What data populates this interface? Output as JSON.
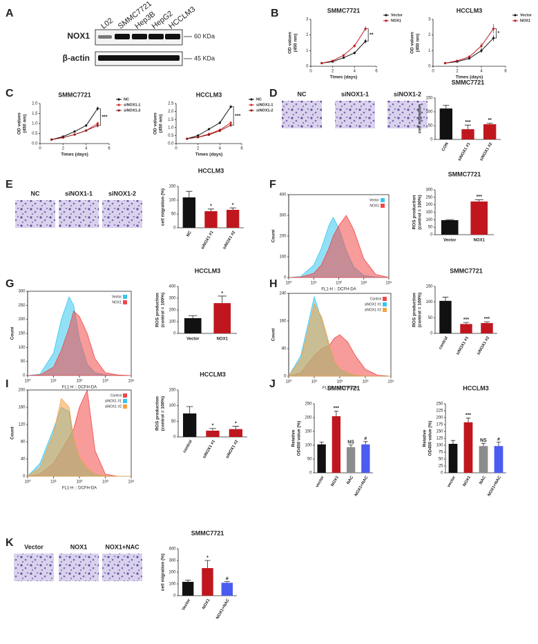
{
  "panel_labels": [
    "A",
    "B",
    "C",
    "D",
    "E",
    "F",
    "G",
    "H",
    "I",
    "J",
    "K"
  ],
  "blot": {
    "lanes": [
      "L02",
      "SMMC7721",
      "Hep3B",
      "HepG2",
      "HCCLM3"
    ],
    "rows": [
      {
        "name": "NOX1",
        "size": "60 KDa"
      },
      {
        "name": "β-actin",
        "size": "45 KDa"
      }
    ]
  },
  "micrographs": [
    {
      "captions": [
        "NC",
        "siNOX1-1",
        "siNOX1-2"
      ]
    },
    {
      "captions": [
        "NC",
        "siNOX1-1",
        "siNOX1-2"
      ]
    },
    {
      "captions": [
        "Vector",
        "NOX1",
        "NOX1+NAC"
      ]
    }
  ],
  "chart_data": [
    {
      "type": "line",
      "title": "SMMC7721",
      "xlabel": "Times (days)",
      "ylabel": [
        "OD values",
        "(450 nm)"
      ],
      "x": [
        1,
        2,
        3,
        4,
        5
      ],
      "xlim": [
        0,
        6
      ],
      "xticks": [
        0,
        2,
        4,
        6
      ],
      "ylim": [
        0,
        3
      ],
      "yticks": [
        0,
        1,
        2,
        3
      ],
      "series": [
        {
          "name": "Vector",
          "color": "#111111",
          "values": [
            0.2,
            0.3,
            0.55,
            0.85,
            1.6
          ],
          "errors": [
            0.02,
            0.03,
            0.05,
            0.08,
            0.15
          ]
        },
        {
          "name": "NOX1",
          "color": "#c0171e",
          "values": [
            0.2,
            0.35,
            0.7,
            1.3,
            2.4
          ],
          "errors": [
            0.02,
            0.04,
            0.06,
            0.1,
            0.15
          ]
        }
      ],
      "annotation": "**",
      "legend": "right"
    },
    {
      "type": "line",
      "title": "HCCLM3",
      "xlabel": "Times (days)",
      "ylabel": [
        "OD values",
        "(450 nm)"
      ],
      "x": [
        1,
        2,
        3,
        4,
        5
      ],
      "xlim": [
        0,
        6
      ],
      "xticks": [
        0,
        2,
        4,
        6
      ],
      "ylim": [
        0,
        3
      ],
      "yticks": [
        0,
        1,
        2,
        3
      ],
      "series": [
        {
          "name": "Vector",
          "color": "#111111",
          "values": [
            0.2,
            0.3,
            0.5,
            1.0,
            1.8
          ],
          "errors": [
            0.02,
            0.03,
            0.05,
            0.15,
            0.2
          ]
        },
        {
          "name": "NOX1",
          "color": "#c0171e",
          "values": [
            0.2,
            0.35,
            0.6,
            1.3,
            2.4
          ],
          "errors": [
            0.02,
            0.04,
            0.1,
            0.2,
            0.3
          ]
        }
      ],
      "annotation": "*",
      "legend": "right"
    },
    {
      "type": "line",
      "title": "SMMC7721",
      "xlabel": "Times (days)",
      "ylabel": [
        "OD values",
        "(450 nm)"
      ],
      "x": [
        1,
        2,
        3,
        4,
        5
      ],
      "xlim": [
        0,
        6
      ],
      "xticks": [
        0,
        2,
        4,
        6
      ],
      "ylim": [
        0,
        2
      ],
      "yticks": [
        {
          "value": 0,
          "label": "0.0"
        },
        {
          "value": 0.5,
          "label": "0.5"
        },
        {
          "value": 1,
          "label": "1.0"
        },
        {
          "value": 1.5,
          "label": "1.5"
        },
        {
          "value": 2,
          "label": "2.0"
        }
      ],
      "series": [
        {
          "name": "NC",
          "color": "#111111",
          "values": [
            0.2,
            0.35,
            0.6,
            0.9,
            1.75
          ],
          "errors": [
            0.02,
            0.03,
            0.04,
            0.05,
            0.1
          ]
        },
        {
          "name": "siNOX1-1",
          "color": "#d62728",
          "values": [
            0.2,
            0.3,
            0.45,
            0.65,
            1.0
          ],
          "errors": [
            0.02,
            0.03,
            0.04,
            0.05,
            0.1
          ]
        },
        {
          "name": "siNOX1-2",
          "color": "#8b1a1a",
          "values": [
            0.2,
            0.3,
            0.45,
            0.65,
            0.9
          ],
          "errors": [
            0.02,
            0.03,
            0.04,
            0.05,
            0.1
          ]
        }
      ],
      "annotation": "***",
      "legend": "right"
    },
    {
      "type": "line",
      "title": "HCCLM3",
      "xlabel": "Times (days)",
      "ylabel": [
        "OD values",
        "(450 nm)"
      ],
      "x": [
        1,
        2,
        3,
        4,
        5
      ],
      "xlim": [
        0,
        6
      ],
      "xticks": [
        0,
        2,
        4,
        6
      ],
      "ylim": [
        0,
        2.5
      ],
      "yticks": [
        {
          "value": 0,
          "label": "0.0"
        },
        {
          "value": 0.5,
          "label": "0.5"
        },
        {
          "value": 1,
          "label": "1.0"
        },
        {
          "value": 1.5,
          "label": "1.5"
        },
        {
          "value": 2,
          "label": "2.0"
        },
        {
          "value": 2.5,
          "label": "2.5"
        }
      ],
      "series": [
        {
          "name": "NC",
          "color": "#111111",
          "values": [
            0.3,
            0.5,
            0.9,
            1.3,
            2.3
          ],
          "errors": [
            0.02,
            0.03,
            0.05,
            0.08,
            0.1
          ]
        },
        {
          "name": "siNOX1-1",
          "color": "#d62728",
          "values": [
            0.3,
            0.4,
            0.6,
            0.85,
            1.3
          ],
          "errors": [
            0.02,
            0.03,
            0.04,
            0.06,
            0.1
          ]
        },
        {
          "name": "siNOX1-2",
          "color": "#8b1a1a",
          "values": [
            0.3,
            0.4,
            0.55,
            0.8,
            1.15
          ],
          "errors": [
            0.02,
            0.03,
            0.04,
            0.06,
            0.1
          ]
        }
      ],
      "annotation": "***",
      "legend": "right"
    },
    {
      "type": "bar",
      "title": "SMMC7721",
      "ylabel": [
        "cell migration"
      ],
      "categories": [
        "CON",
        "siNOX1 #1",
        "siNOX1 #2"
      ],
      "values": [
        112,
        37,
        55
      ],
      "errors": [
        12,
        15,
        4
      ],
      "colors": [
        "#111111",
        "#c0171e",
        "#c0171e"
      ],
      "annotations": [
        null,
        "***",
        "**"
      ],
      "ylim": [
        0,
        150
      ],
      "yticks": [
        0,
        50,
        100,
        150
      ],
      "xtick_rotation": 60
    },
    {
      "type": "bar",
      "title": "HCCLM3",
      "ylabel": [
        "cell migration (%)"
      ],
      "categories": [
        "NC",
        "siNOX1 #1",
        "siNOX1 #2"
      ],
      "values": [
        110,
        60,
        65
      ],
      "errors": [
        22,
        8,
        7
      ],
      "colors": [
        "#111111",
        "#c0171e",
        "#c0171e"
      ],
      "annotations": [
        null,
        "*",
        "*"
      ],
      "ylim": [
        0,
        150
      ],
      "yticks": [
        0,
        50,
        100,
        150
      ],
      "xtick_rotation": 60
    },
    {
      "type": "flow",
      "xlabel": "FL1-H :: DCFH-DA",
      "ylabel": [
        "Count"
      ],
      "xscale": "log",
      "x": [
        1,
        3,
        10,
        20,
        40,
        60,
        100,
        200,
        400,
        1000,
        3000,
        10000
      ],
      "xlim": [
        1,
        10000
      ],
      "xticks": [
        {
          "value": 1,
          "label": "10⁰"
        },
        {
          "value": 10,
          "label": "10¹"
        },
        {
          "value": 100,
          "label": "10²"
        },
        {
          "value": 1000,
          "label": "10³"
        },
        {
          "value": 10000,
          "label": "10⁴"
        }
      ],
      "ylim": [
        0,
        400
      ],
      "yticks": [
        0,
        100,
        200,
        300,
        400
      ],
      "series": [
        {
          "name": "Vector",
          "color": "#38c6ef",
          "values": [
            0,
            5,
            60,
            140,
            250,
            290,
            240,
            130,
            50,
            10,
            2,
            0
          ]
        },
        {
          "name": "NOX1",
          "color": "#f04848",
          "values": [
            0,
            2,
            20,
            60,
            140,
            200,
            250,
            300,
            230,
            90,
            15,
            0
          ]
        }
      ]
    },
    {
      "type": "bar",
      "title": "SMMC7721",
      "ylabel": [
        "ROS production",
        "(control = 100%)"
      ],
      "categories": [
        "Vector",
        "NOX1"
      ],
      "values": [
        97,
        222
      ],
      "errors": [
        4,
        12
      ],
      "colors": [
        "#111111",
        "#c0171e"
      ],
      "annotations": [
        null,
        "***"
      ],
      "ylim": [
        0,
        300
      ],
      "yticks": [
        0,
        50,
        100,
        150,
        200,
        250,
        300
      ],
      "xtick_rotation": 0
    },
    {
      "type": "flow",
      "xlabel": "FL1-H :: DCFH-DA",
      "ylabel": [
        "Count"
      ],
      "xscale": "log",
      "x": [
        1,
        3,
        10,
        20,
        40,
        60,
        100,
        200,
        400,
        1000,
        3000,
        10000
      ],
      "xlim": [
        1,
        10000
      ],
      "xticks": [
        {
          "value": 1,
          "label": "10⁰"
        },
        {
          "value": 10,
          "label": "10¹"
        },
        {
          "value": 100,
          "label": "10²"
        },
        {
          "value": 1000,
          "label": "10³"
        },
        {
          "value": 10000,
          "label": "10⁴"
        }
      ],
      "ylim": [
        0,
        300
      ],
      "yticks": [
        0,
        50,
        100,
        150,
        200,
        250,
        300
      ],
      "series": [
        {
          "name": "Vector",
          "color": "#38c6ef",
          "values": [
            0,
            5,
            80,
            200,
            280,
            250,
            130,
            40,
            10,
            2,
            0,
            0
          ]
        },
        {
          "name": "NOX1",
          "color": "#f04848",
          "values": [
            0,
            2,
            30,
            90,
            170,
            230,
            210,
            150,
            60,
            10,
            2,
            0
          ]
        }
      ]
    },
    {
      "type": "bar",
      "title": "HCCLM3",
      "ylabel": [
        "ROS production",
        "(control = 100%)"
      ],
      "categories": [
        "Vector",
        "NOX1"
      ],
      "values": [
        130,
        258
      ],
      "errors": [
        20,
        60
      ],
      "colors": [
        "#111111",
        "#c0171e"
      ],
      "annotations": [
        null,
        "*"
      ],
      "ylim": [
        0,
        400
      ],
      "yticks": [
        0,
        100,
        200,
        300,
        400
      ],
      "xtick_rotation": 0
    },
    {
      "type": "flow",
      "xlabel": "FL1-H :: DCFH-DA",
      "ylabel": [
        "Count"
      ],
      "xscale": "log",
      "x": [
        1,
        3,
        10,
        20,
        40,
        60,
        100,
        200,
        400,
        1000,
        3000,
        10000
      ],
      "xlim": [
        1,
        10000
      ],
      "xticks": [
        {
          "value": 1,
          "label": "10⁰"
        },
        {
          "value": 10,
          "label": "10¹"
        },
        {
          "value": 100,
          "label": "10²"
        },
        {
          "value": 1000,
          "label": "10³"
        },
        {
          "value": 10000,
          "label": "10⁴"
        }
      ],
      "ylim": [
        0,
        240
      ],
      "yticks": [
        0,
        80,
        160,
        240
      ],
      "series": [
        {
          "name": "Control",
          "color": "#f04848",
          "values": [
            0,
            10,
            60,
            80,
            90,
            110,
            120,
            100,
            60,
            20,
            3,
            0
          ]
        },
        {
          "name": "siNOX1 #1",
          "color": "#38c6ef",
          "values": [
            0,
            60,
            230,
            160,
            80,
            40,
            20,
            8,
            3,
            1,
            0,
            0
          ]
        },
        {
          "name": "siNOX1 #2",
          "color": "#f5a142",
          "values": [
            0,
            50,
            210,
            170,
            90,
            45,
            22,
            10,
            3,
            1,
            0,
            0
          ]
        }
      ]
    },
    {
      "type": "bar",
      "title": "SMMC7721",
      "ylabel": [
        "ROS production",
        "(control = 100%)"
      ],
      "categories": [
        "control",
        "siNOX1 #1",
        "siNOX1 #2"
      ],
      "values": [
        104,
        30,
        33
      ],
      "errors": [
        12,
        5,
        4
      ],
      "colors": [
        "#111111",
        "#c0171e",
        "#c0171e"
      ],
      "annotations": [
        null,
        "***",
        "***"
      ],
      "ylim": [
        0,
        150
      ],
      "yticks": [
        0,
        50,
        100,
        150
      ],
      "xtick_rotation": 60
    },
    {
      "type": "flow",
      "xlabel": "FL1-H :: DCFH-DA",
      "ylabel": [
        "Count"
      ],
      "xscale": "log",
      "x": [
        1,
        3,
        10,
        20,
        40,
        60,
        100,
        200,
        400,
        1000,
        3000,
        10000
      ],
      "xlim": [
        1,
        10000
      ],
      "xticks": [
        {
          "value": 1,
          "label": "10⁰"
        },
        {
          "value": 10,
          "label": "10¹"
        },
        {
          "value": 100,
          "label": "10²"
        },
        {
          "value": 1000,
          "label": "10³"
        },
        {
          "value": 10000,
          "label": "10⁴"
        }
      ],
      "ylim": [
        0,
        200
      ],
      "yticks": [
        0,
        40,
        80,
        120,
        160,
        200
      ],
      "series": [
        {
          "name": "Control",
          "color": "#f04848",
          "values": [
            0,
            5,
            30,
            60,
            90,
            110,
            160,
            200,
            60,
            5,
            0,
            0
          ]
        },
        {
          "name": "siNOX1 #1",
          "color": "#38c6ef",
          "values": [
            0,
            30,
            110,
            160,
            150,
            80,
            40,
            15,
            5,
            1,
            0,
            0
          ]
        },
        {
          "name": "siNOX1 #2",
          "color": "#f5a142",
          "values": [
            0,
            20,
            100,
            180,
            160,
            90,
            45,
            20,
            5,
            1,
            0,
            0
          ]
        }
      ]
    },
    {
      "type": "bar",
      "title": "HCCLM3",
      "ylabel": [
        "ROS production",
        "(control = 100%)"
      ],
      "categories": [
        "control",
        "siNOX1 #1",
        "siNOX1 #2"
      ],
      "values": [
        75,
        20,
        25
      ],
      "errors": [
        22,
        7,
        9
      ],
      "colors": [
        "#111111",
        "#c0171e",
        "#c0171e"
      ],
      "annotations": [
        null,
        "*",
        "*"
      ],
      "ylim": [
        0,
        150
      ],
      "yticks": [
        0,
        50,
        100,
        150
      ],
      "xtick_rotation": 60
    },
    {
      "type": "bar",
      "title": "SMMC7721",
      "ylabel": [
        "Relative",
        "OD450 value (%)"
      ],
      "categories": [
        "vector",
        "NOX1",
        "NAC",
        "NOX1+NAC"
      ],
      "values": [
        103,
        205,
        93,
        103
      ],
      "errors": [
        8,
        18,
        8,
        10
      ],
      "colors": [
        "#111111",
        "#c0171e",
        "#8c8c8c",
        "#4b5cf0"
      ],
      "annotations": [
        null,
        "***",
        "NS",
        "#"
      ],
      "ylim": [
        0,
        250
      ],
      "yticks": [
        0,
        50,
        100,
        150,
        200,
        250
      ],
      "xtick_rotation": 60
    },
    {
      "type": "bar",
      "title": "HCCLM3",
      "ylabel": [
        "Relative",
        "OD450 value (%)"
      ],
      "categories": [
        "vector",
        "NOX1",
        "NAC",
        "NOX1+NAC"
      ],
      "values": [
        105,
        183,
        97,
        97
      ],
      "errors": [
        12,
        15,
        10,
        14
      ],
      "colors": [
        "#111111",
        "#c0171e",
        "#8c8c8c",
        "#4b5cf0"
      ],
      "annotations": [
        null,
        "***",
        "NS",
        "#"
      ],
      "ylim": [
        0,
        250
      ],
      "yticks": [
        0,
        25,
        50,
        75,
        100,
        125,
        150,
        175,
        200,
        225,
        250
      ],
      "xtick_rotation": 60
    },
    {
      "type": "bar",
      "title": "SMMC7721",
      "ylabel": [
        "cell migration (%)"
      ],
      "categories": [
        "Vector",
        "NOX1",
        "NOX1+NAC"
      ],
      "values": [
        118,
        235,
        110
      ],
      "errors": [
        15,
        65,
        10
      ],
      "colors": [
        "#111111",
        "#c0171e",
        "#4b5cf0"
      ],
      "annotations": [
        null,
        "*",
        "#"
      ],
      "ylim": [
        0,
        400
      ],
      "yticks": [
        0,
        100,
        200,
        300,
        400
      ],
      "xtick_rotation": 60
    }
  ]
}
